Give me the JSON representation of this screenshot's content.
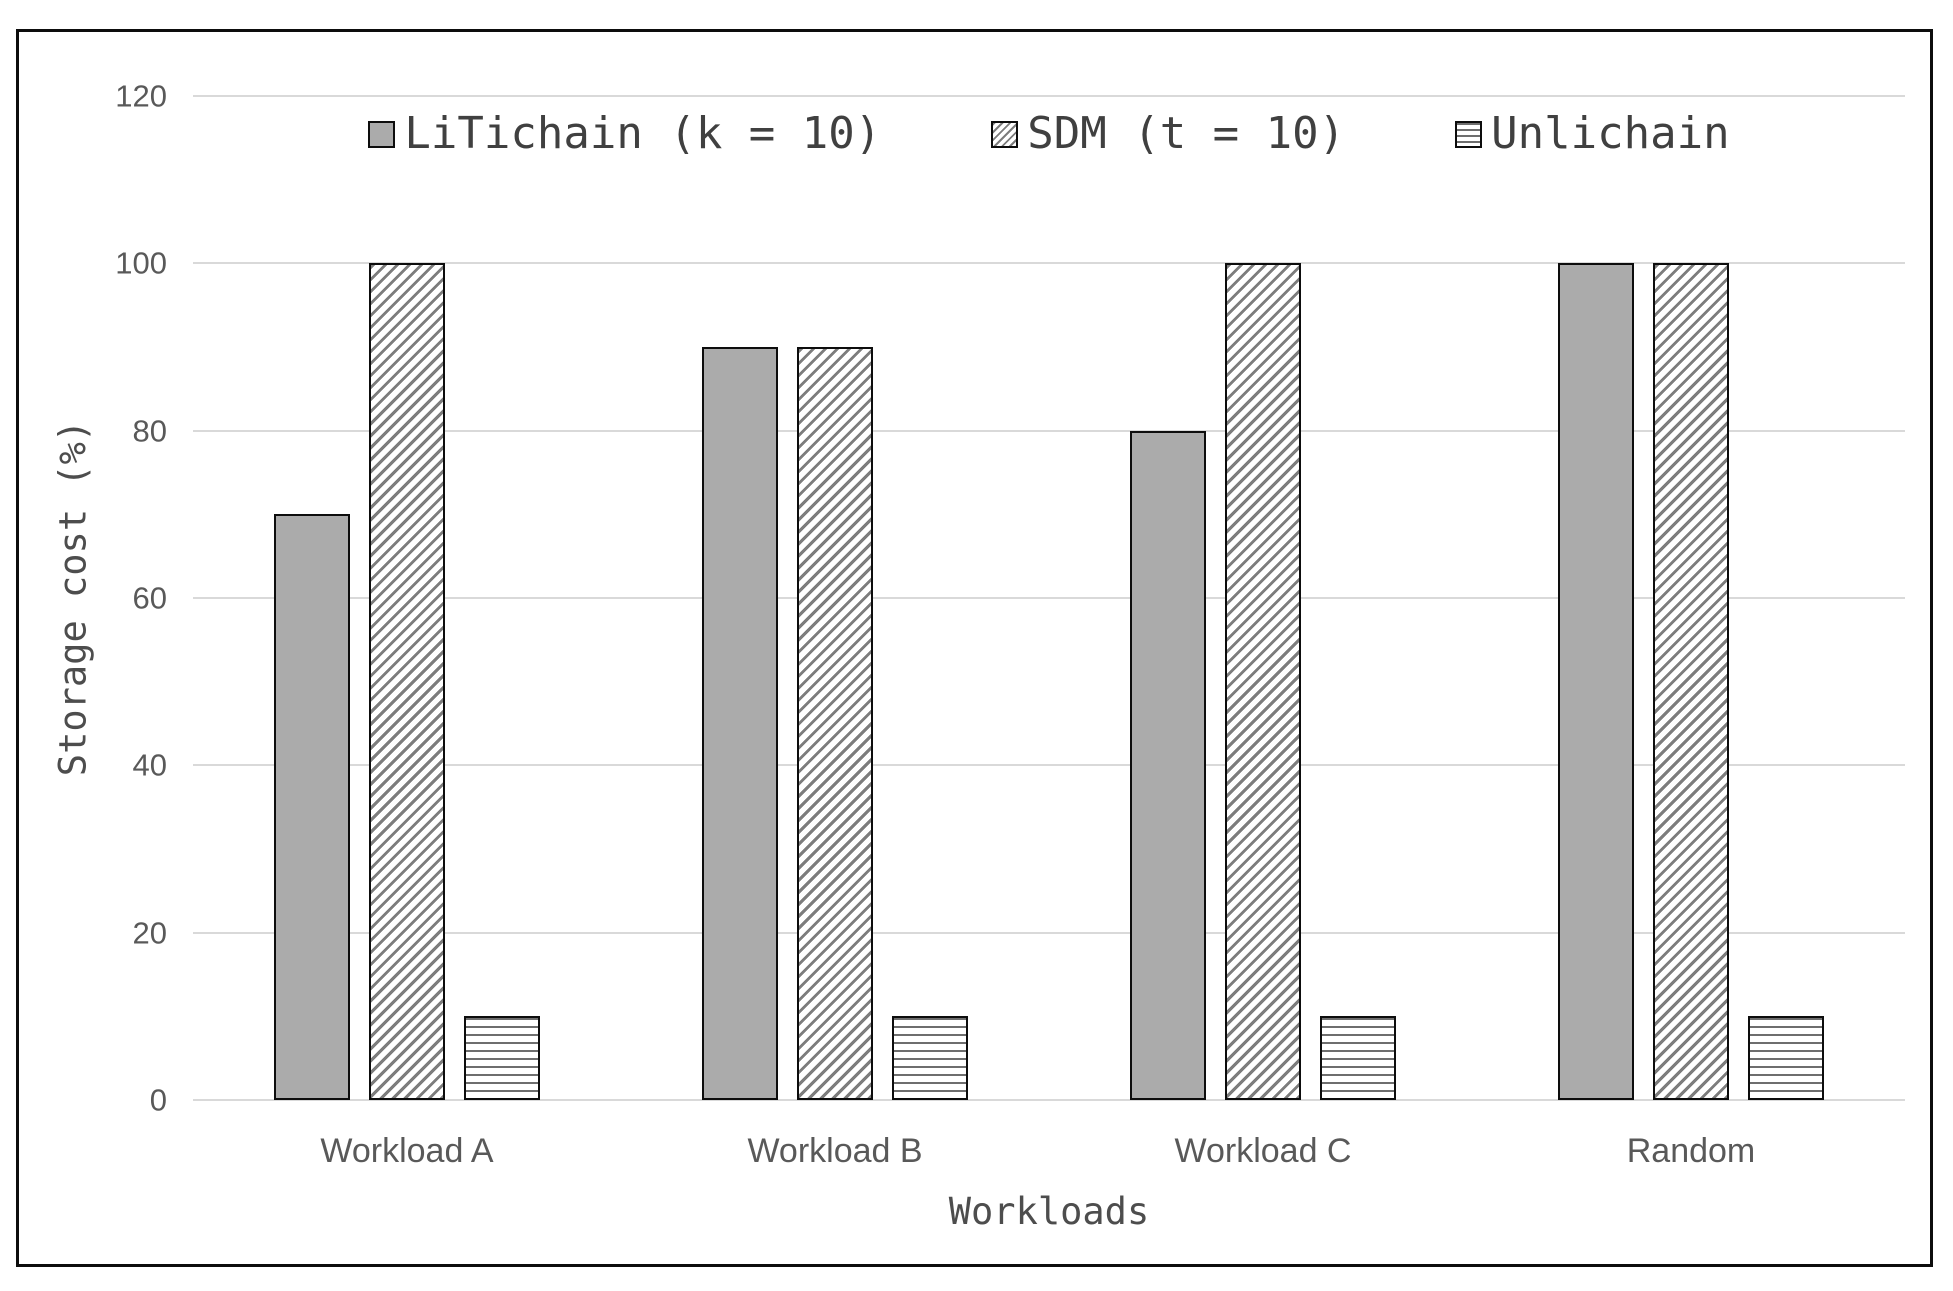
{
  "chart_data": {
    "type": "bar",
    "title": "",
    "categories": [
      "Workload A",
      "Workload B",
      "Workload C",
      "Random"
    ],
    "series": [
      {
        "name": "LiTichain (k = 10)",
        "pattern": "solid-gray",
        "values": [
          70,
          90,
          80,
          100
        ]
      },
      {
        "name": "SDM (t = 10)",
        "pattern": "diagonal-hatch",
        "values": [
          100,
          90,
          100,
          100
        ]
      },
      {
        "name": "Unlichain",
        "pattern": "horizontal-lines",
        "values": [
          10,
          10,
          10,
          10
        ]
      }
    ],
    "xlabel": "Workloads",
    "ylabel": "Storage cost (%)",
    "ylim": [
      0,
      120
    ],
    "yticks": [
      0,
      20,
      40,
      60,
      80,
      100,
      120
    ],
    "grid": true,
    "legend_position": "top-center"
  },
  "colors": {
    "bar_fill_gray": "#ABABAB",
    "hatch_line": "#7D7D7D",
    "grid_line": "#D9D9D9",
    "bar_border": "#0D0D0D",
    "tick_text": "#595959",
    "title_text": "#4D4D4D",
    "frame_border": "#0D0D0D",
    "background": "#FFFFFF"
  }
}
